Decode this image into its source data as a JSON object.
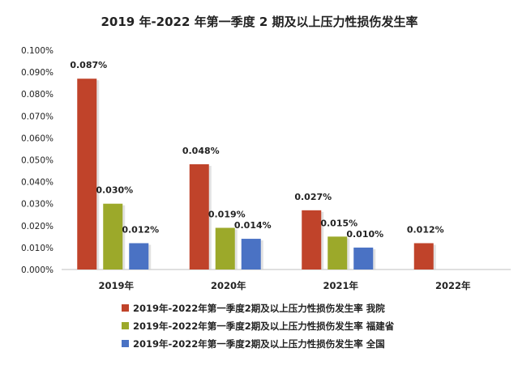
{
  "chart_data": {
    "type": "bar",
    "title": "2019 年-2022 年第一季度 2 期及以上压力性损伤发生率",
    "categories": [
      "2019年",
      "2020年",
      "2021年",
      "2022年"
    ],
    "series": [
      {
        "name": "2019年-2022年第一季度2期及以上压力性损伤发生率 我院",
        "color": "#c0432a",
        "values": [
          0.087,
          0.048,
          0.027,
          0.012
        ],
        "labels": [
          "0.087%",
          "0.048%",
          "0.027%",
          "0.012%"
        ]
      },
      {
        "name": "2019年-2022年第一季度2期及以上压力性损伤发生率 福建省",
        "color": "#9ca92a",
        "values": [
          0.03,
          0.019,
          0.015,
          null
        ],
        "labels": [
          "0.030%",
          "0.019%",
          "0.015%",
          ""
        ]
      },
      {
        "name": "2019年-2022年第一季度2期及以上压力性损伤发生率 全国",
        "color": "#4a72c4",
        "values": [
          0.012,
          0.014,
          0.01,
          null
        ],
        "labels": [
          "0.012%",
          "0.014%",
          "0.010%",
          ""
        ]
      }
    ],
    "ylim": [
      0,
      0.1
    ],
    "yticks": [
      0,
      0.01,
      0.02,
      0.03,
      0.04,
      0.05,
      0.06,
      0.07,
      0.08,
      0.09,
      0.1
    ],
    "ytick_labels": [
      "0.000%",
      "0.010%",
      "0.020%",
      "0.030%",
      "0.040%",
      "0.050%",
      "0.060%",
      "0.070%",
      "0.080%",
      "0.090%",
      "0.100%"
    ],
    "grid": false,
    "legend_position": "bottom"
  }
}
